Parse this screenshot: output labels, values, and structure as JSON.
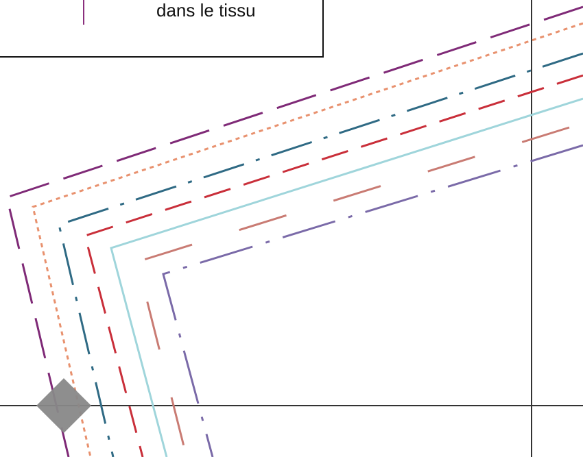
{
  "legend": {
    "text": "dans le tissu",
    "swatch_color": "#8a2f7d"
  },
  "lines": [
    {
      "name": "purple-dash",
      "color": "#7f2a77",
      "dash": "long-dash"
    },
    {
      "name": "orange-dot",
      "color": "#e8916e",
      "dash": "dot"
    },
    {
      "name": "teal-dashdot",
      "color": "#2f6a84",
      "dash": "dash-dot"
    },
    {
      "name": "red-dash",
      "color": "#c92f3a",
      "dash": "dash"
    },
    {
      "name": "cyan-solid",
      "color": "#9fd5db",
      "dash": "solid"
    },
    {
      "name": "rose-longdash",
      "color": "#c97b73",
      "dash": "long-dash-gap"
    },
    {
      "name": "lavender-dashdot",
      "color": "#7a6aa8",
      "dash": "dash-dot"
    }
  ],
  "guides": {
    "color": "#333333"
  },
  "marker": {
    "color": "#888888"
  }
}
